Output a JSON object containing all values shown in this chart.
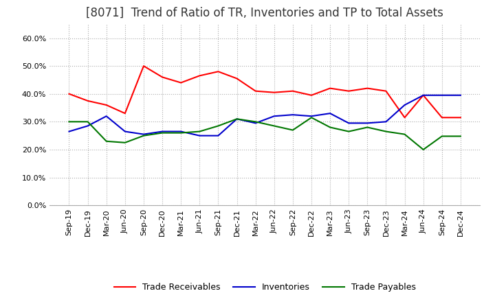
{
  "title": "[8071]  Trend of Ratio of TR, Inventories and TP to Total Assets",
  "x_labels": [
    "Sep-19",
    "Dec-19",
    "Mar-20",
    "Jun-20",
    "Sep-20",
    "Dec-20",
    "Mar-21",
    "Jun-21",
    "Sep-21",
    "Dec-21",
    "Mar-22",
    "Jun-22",
    "Sep-22",
    "Dec-22",
    "Mar-23",
    "Jun-23",
    "Sep-23",
    "Dec-23",
    "Mar-24",
    "Jun-24",
    "Sep-24",
    "Dec-24"
  ],
  "trade_receivables": [
    0.4,
    0.375,
    0.36,
    0.33,
    0.5,
    0.46,
    0.44,
    0.465,
    0.48,
    0.455,
    0.41,
    0.405,
    0.41,
    0.395,
    0.42,
    0.41,
    0.42,
    0.41,
    0.315,
    0.395,
    0.315,
    0.315
  ],
  "inventories": [
    0.265,
    0.285,
    0.32,
    0.265,
    0.255,
    0.265,
    0.265,
    0.25,
    0.25,
    0.31,
    0.295,
    0.32,
    0.325,
    0.32,
    0.33,
    0.295,
    0.295,
    0.3,
    0.36,
    0.395,
    0.395,
    0.395
  ],
  "trade_payables": [
    0.3,
    0.3,
    0.23,
    0.225,
    0.25,
    0.26,
    0.26,
    0.265,
    0.285,
    0.31,
    0.3,
    0.285,
    0.27,
    0.315,
    0.28,
    0.265,
    0.28,
    0.265,
    0.255,
    0.2,
    0.248,
    0.248
  ],
  "tr_color": "#ff0000",
  "inv_color": "#0000cc",
  "tp_color": "#007700",
  "ylim": [
    0.0,
    0.65
  ],
  "yticks": [
    0.0,
    0.1,
    0.2,
    0.3,
    0.4,
    0.5,
    0.6
  ],
  "grid_color": "#aaaaaa",
  "background_color": "#ffffff",
  "title_fontsize": 12,
  "tick_fontsize": 8,
  "legend_labels": [
    "Trade Receivables",
    "Inventories",
    "Trade Payables"
  ]
}
